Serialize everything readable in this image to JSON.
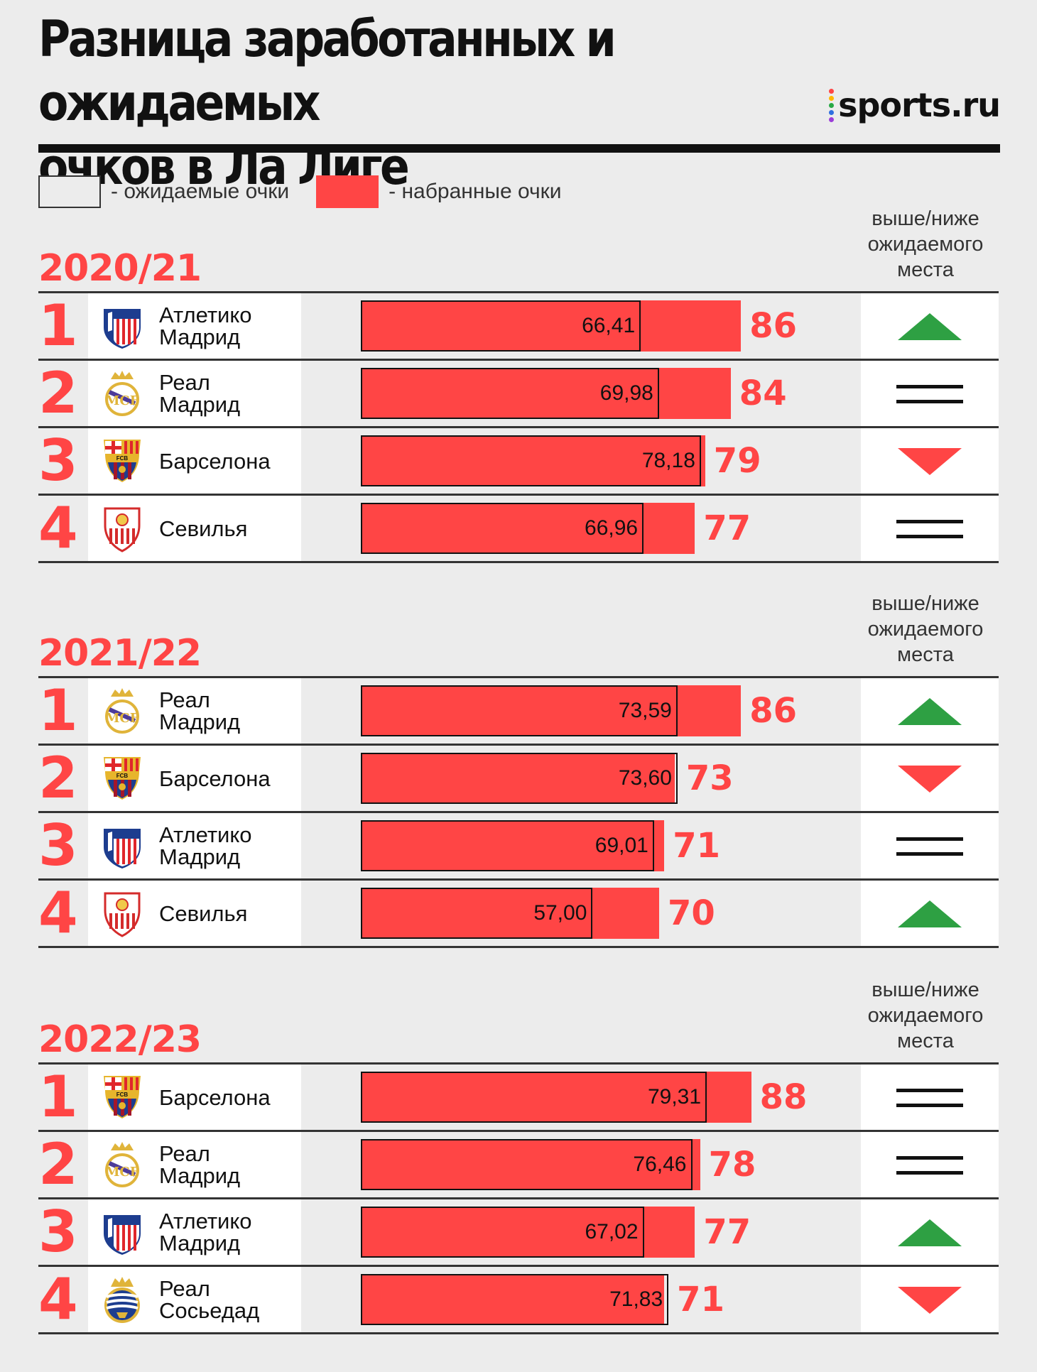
{
  "title_line1": "Разница заработанных и ожидаемых",
  "title_line2": "очков в Ла Лиге",
  "brand": "sports.ru",
  "brand_colors": [
    "#ff4545",
    "#ffb800",
    "#27a844",
    "#2f6fe0",
    "#9b3dd8"
  ],
  "legend": {
    "expected": "- ожидаемые очки",
    "actual": "- набранные очки"
  },
  "diff_header": "выше/ниже\nожидаемого\nместа",
  "colors": {
    "actual": "#ff4545",
    "up": "#2ea043",
    "down": "#ff4545",
    "equal": "#111111"
  },
  "chart_data": {
    "type": "bar",
    "xlim": [
      0,
      88
    ],
    "seasons": [
      {
        "label": "2020/21",
        "rows": [
          {
            "rank": "1",
            "team": "Атлетико\nМадрид",
            "crest": "atletico-madrid-crest",
            "expected": 66.41,
            "expected_label": "66,41",
            "actual": 86,
            "actual_label": "86",
            "diff": "up"
          },
          {
            "rank": "2",
            "team": "Реал\nМадрид",
            "crest": "real-madrid-crest",
            "expected": 69.98,
            "expected_label": "69,98",
            "actual": 84,
            "actual_label": "84",
            "diff": "equal"
          },
          {
            "rank": "3",
            "team": "Барселона",
            "crest": "barcelona-crest",
            "expected": 78.18,
            "expected_label": "78,18",
            "actual": 79,
            "actual_label": "79",
            "diff": "down"
          },
          {
            "rank": "4",
            "team": "Севилья",
            "crest": "sevilla-crest",
            "expected": 66.96,
            "expected_label": "66,96",
            "actual": 77,
            "actual_label": "77",
            "diff": "equal"
          }
        ]
      },
      {
        "label": "2021/22",
        "rows": [
          {
            "rank": "1",
            "team": "Реал\nМадрид",
            "crest": "real-madrid-crest",
            "expected": 73.59,
            "expected_label": "73,59",
            "actual": 86,
            "actual_label": "86",
            "diff": "up"
          },
          {
            "rank": "2",
            "team": "Барселона",
            "crest": "barcelona-crest",
            "expected": 73.6,
            "expected_label": "73,60",
            "actual": 73,
            "actual_label": "73",
            "diff": "down"
          },
          {
            "rank": "3",
            "team": "Атлетико\nМадрид",
            "crest": "atletico-madrid-crest",
            "expected": 69.01,
            "expected_label": "69,01",
            "actual": 71,
            "actual_label": "71",
            "diff": "equal"
          },
          {
            "rank": "4",
            "team": "Севилья",
            "crest": "sevilla-crest",
            "expected": 57.0,
            "expected_label": "57,00",
            "actual": 70,
            "actual_label": "70",
            "diff": "up"
          }
        ]
      },
      {
        "label": "2022/23",
        "rows": [
          {
            "rank": "1",
            "team": "Барселона",
            "crest": "barcelona-crest",
            "expected": 79.31,
            "expected_label": "79,31",
            "actual": 88,
            "actual_label": "88",
            "diff": "equal"
          },
          {
            "rank": "2",
            "team": "Реал\nМадрид",
            "crest": "real-madrid-crest",
            "expected": 76.46,
            "expected_label": "76,46",
            "actual": 78,
            "actual_label": "78",
            "diff": "equal"
          },
          {
            "rank": "3",
            "team": "Атлетико\nМадрид",
            "crest": "atletico-madrid-crest",
            "expected": 67.02,
            "expected_label": "67,02",
            "actual": 77,
            "actual_label": "77",
            "diff": "up"
          },
          {
            "rank": "4",
            "team": "Реал\nСосьедад",
            "crest": "real-sociedad-crest",
            "expected": 71.83,
            "expected_label": "71,83",
            "actual": 71,
            "actual_label": "71",
            "diff": "down"
          }
        ]
      }
    ]
  }
}
